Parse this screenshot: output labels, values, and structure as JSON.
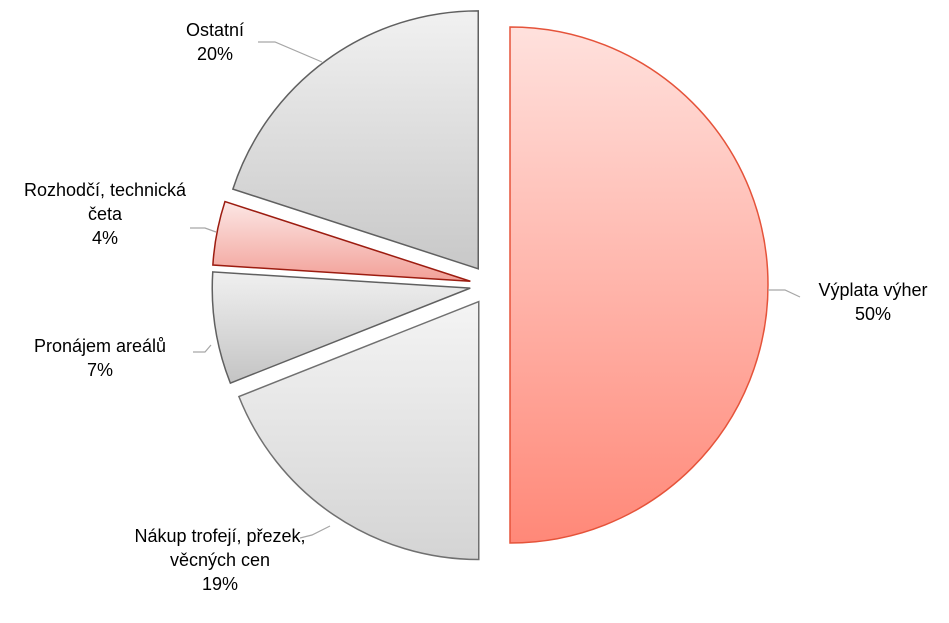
{
  "chart_data": {
    "type": "pie",
    "categories": [
      "Výplata výher",
      "Nákup trofejí, přezek, věcných cen",
      "Pronájem areálů",
      "Rozhodčí, technická četa",
      "Ostatní"
    ],
    "values": [
      50,
      19,
      7,
      4,
      20
    ],
    "value_labels": [
      "50%",
      "19%",
      "7%",
      "4%",
      "20%"
    ],
    "colors": [
      "#ff8878",
      "#d4d4d4",
      "#c4c4c4",
      "#f2a098",
      "#c8c8c8"
    ],
    "stroke_colors": [
      "#e5533a",
      "#707070",
      "#606060",
      "#9c1c10",
      "#606060"
    ]
  }
}
